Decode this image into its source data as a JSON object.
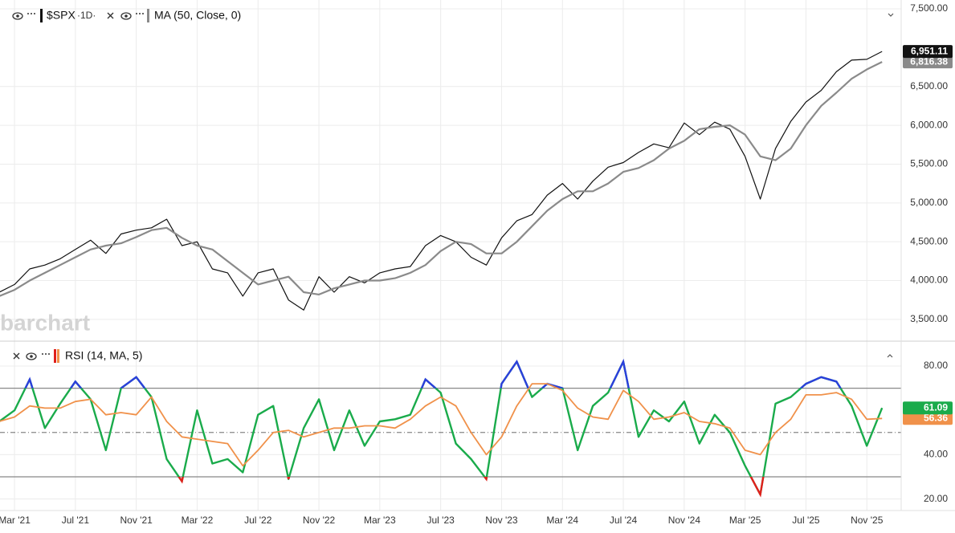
{
  "chart_data": [
    {
      "type": "line",
      "symbol": "$SPX",
      "interval": "1D",
      "watermark": "barchart",
      "ylim": [
        3230,
        7614
      ],
      "yticks": [
        {
          "value": 3500,
          "label": "3,500.00"
        },
        {
          "value": 4000,
          "label": "4,000.00"
        },
        {
          "value": 4500,
          "label": "4,500.00"
        },
        {
          "value": 5000,
          "label": "5,000.00"
        },
        {
          "value": 5500,
          "label": "5,500.00"
        },
        {
          "value": 6000,
          "label": "6,000.00"
        },
        {
          "value": 6500,
          "label": "6,500.00"
        },
        {
          "value": 7500,
          "label": "7,500.00"
        }
      ],
      "grid": true,
      "series": [
        {
          "name": "$SPX",
          "color": "#111111",
          "width": 1.2,
          "badge_color": "#111111",
          "last_label": "6,951.11",
          "values": [
            3850,
            3950,
            4150,
            4200,
            4280,
            4400,
            4520,
            4350,
            4600,
            4650,
            4680,
            4790,
            4450,
            4500,
            4150,
            4100,
            3800,
            4100,
            4150,
            3750,
            3620,
            4050,
            3850,
            4050,
            3970,
            4100,
            4150,
            4180,
            4450,
            4580,
            4500,
            4300,
            4200,
            4550,
            4770,
            4850,
            5100,
            5250,
            5050,
            5280,
            5460,
            5520,
            5650,
            5760,
            5710,
            6030,
            5880,
            6040,
            5950,
            5600,
            5050,
            5700,
            6050,
            6300,
            6450,
            6690,
            6840,
            6850,
            6951.11
          ]
        },
        {
          "name": "MA (50, Close, 0)",
          "color": "#8a8a8a",
          "width": 2.2,
          "badge_color": "#8a8a8a",
          "last_label": "6,816.38",
          "values": [
            3800,
            3880,
            4000,
            4100,
            4200,
            4300,
            4400,
            4450,
            4480,
            4560,
            4650,
            4680,
            4550,
            4450,
            4400,
            4250,
            4100,
            3950,
            4000,
            4050,
            3850,
            3820,
            3900,
            3950,
            4000,
            4000,
            4030,
            4100,
            4200,
            4380,
            4500,
            4470,
            4350,
            4350,
            4500,
            4700,
            4900,
            5050,
            5150,
            5150,
            5250,
            5400,
            5450,
            5550,
            5700,
            5800,
            5950,
            5980,
            6000,
            5880,
            5600,
            5550,
            5700,
            6000,
            6250,
            6420,
            6600,
            6720,
            6816.38
          ]
        }
      ]
    },
    {
      "type": "line",
      "title": "RSI (14, MA, 5)",
      "categories": [
        null,
        "Mar '21",
        null,
        null,
        null,
        "Jul '21",
        null,
        null,
        null,
        "Nov '21",
        null,
        null,
        null,
        "Mar '22",
        null,
        null,
        null,
        "Jul '22",
        null,
        null,
        null,
        "Nov '22",
        null,
        null,
        null,
        "Mar '23",
        null,
        null,
        null,
        "Jul '23",
        null,
        null,
        null,
        "Nov '23",
        null,
        null,
        null,
        "Mar '24",
        null,
        null,
        null,
        "Jul '24",
        null,
        null,
        null,
        "Nov '24",
        null,
        null,
        null,
        "Mar '25",
        null,
        null,
        null,
        "Jul '25",
        null,
        null,
        null,
        "Nov '25",
        null
      ],
      "ylim": [
        14.8,
        90.5
      ],
      "yticks": [
        {
          "value": 20,
          "label": "20.00"
        },
        {
          "value": 40,
          "label": "40.00"
        },
        {
          "value": 80,
          "label": "80.00"
        }
      ],
      "levels": [
        70,
        50,
        30
      ],
      "overbought_color": "#2b3fdc",
      "oversold_color": "#e0201c",
      "series": [
        {
          "color": "#1aab4b",
          "width": 2.4,
          "badge_color": "#1aab4b",
          "last_label": "61.09",
          "values": [
            55,
            60,
            74,
            52,
            63,
            73,
            65,
            42,
            70,
            75,
            66,
            38,
            28,
            60,
            36,
            38,
            32,
            58,
            62,
            29,
            52,
            65,
            42,
            60,
            44,
            55,
            56,
            58,
            74,
            68,
            45,
            38,
            29,
            72,
            82,
            66,
            72,
            70,
            42,
            62,
            68,
            82,
            48,
            60,
            55,
            64,
            45,
            58,
            50,
            35,
            22,
            63,
            66,
            72,
            75,
            73,
            62,
            44,
            61.09
          ]
        },
        {
          "color": "#f0914a",
          "width": 1.8,
          "badge_color": "#f0914a",
          "last_label": "56.36",
          "values": [
            55,
            57,
            62,
            61,
            61,
            64,
            65,
            58,
            59,
            58,
            66,
            55,
            48,
            47,
            46,
            45,
            35,
            42,
            50,
            51,
            48,
            50,
            52,
            52,
            53,
            53,
            52,
            56,
            62,
            66,
            62,
            50,
            40,
            48,
            62,
            72,
            72,
            69,
            61,
            57,
            56,
            69,
            64,
            56,
            57,
            59,
            55,
            54,
            52,
            42,
            40,
            50,
            56,
            67,
            67,
            68,
            65,
            56,
            56.36
          ]
        }
      ]
    }
  ]
}
